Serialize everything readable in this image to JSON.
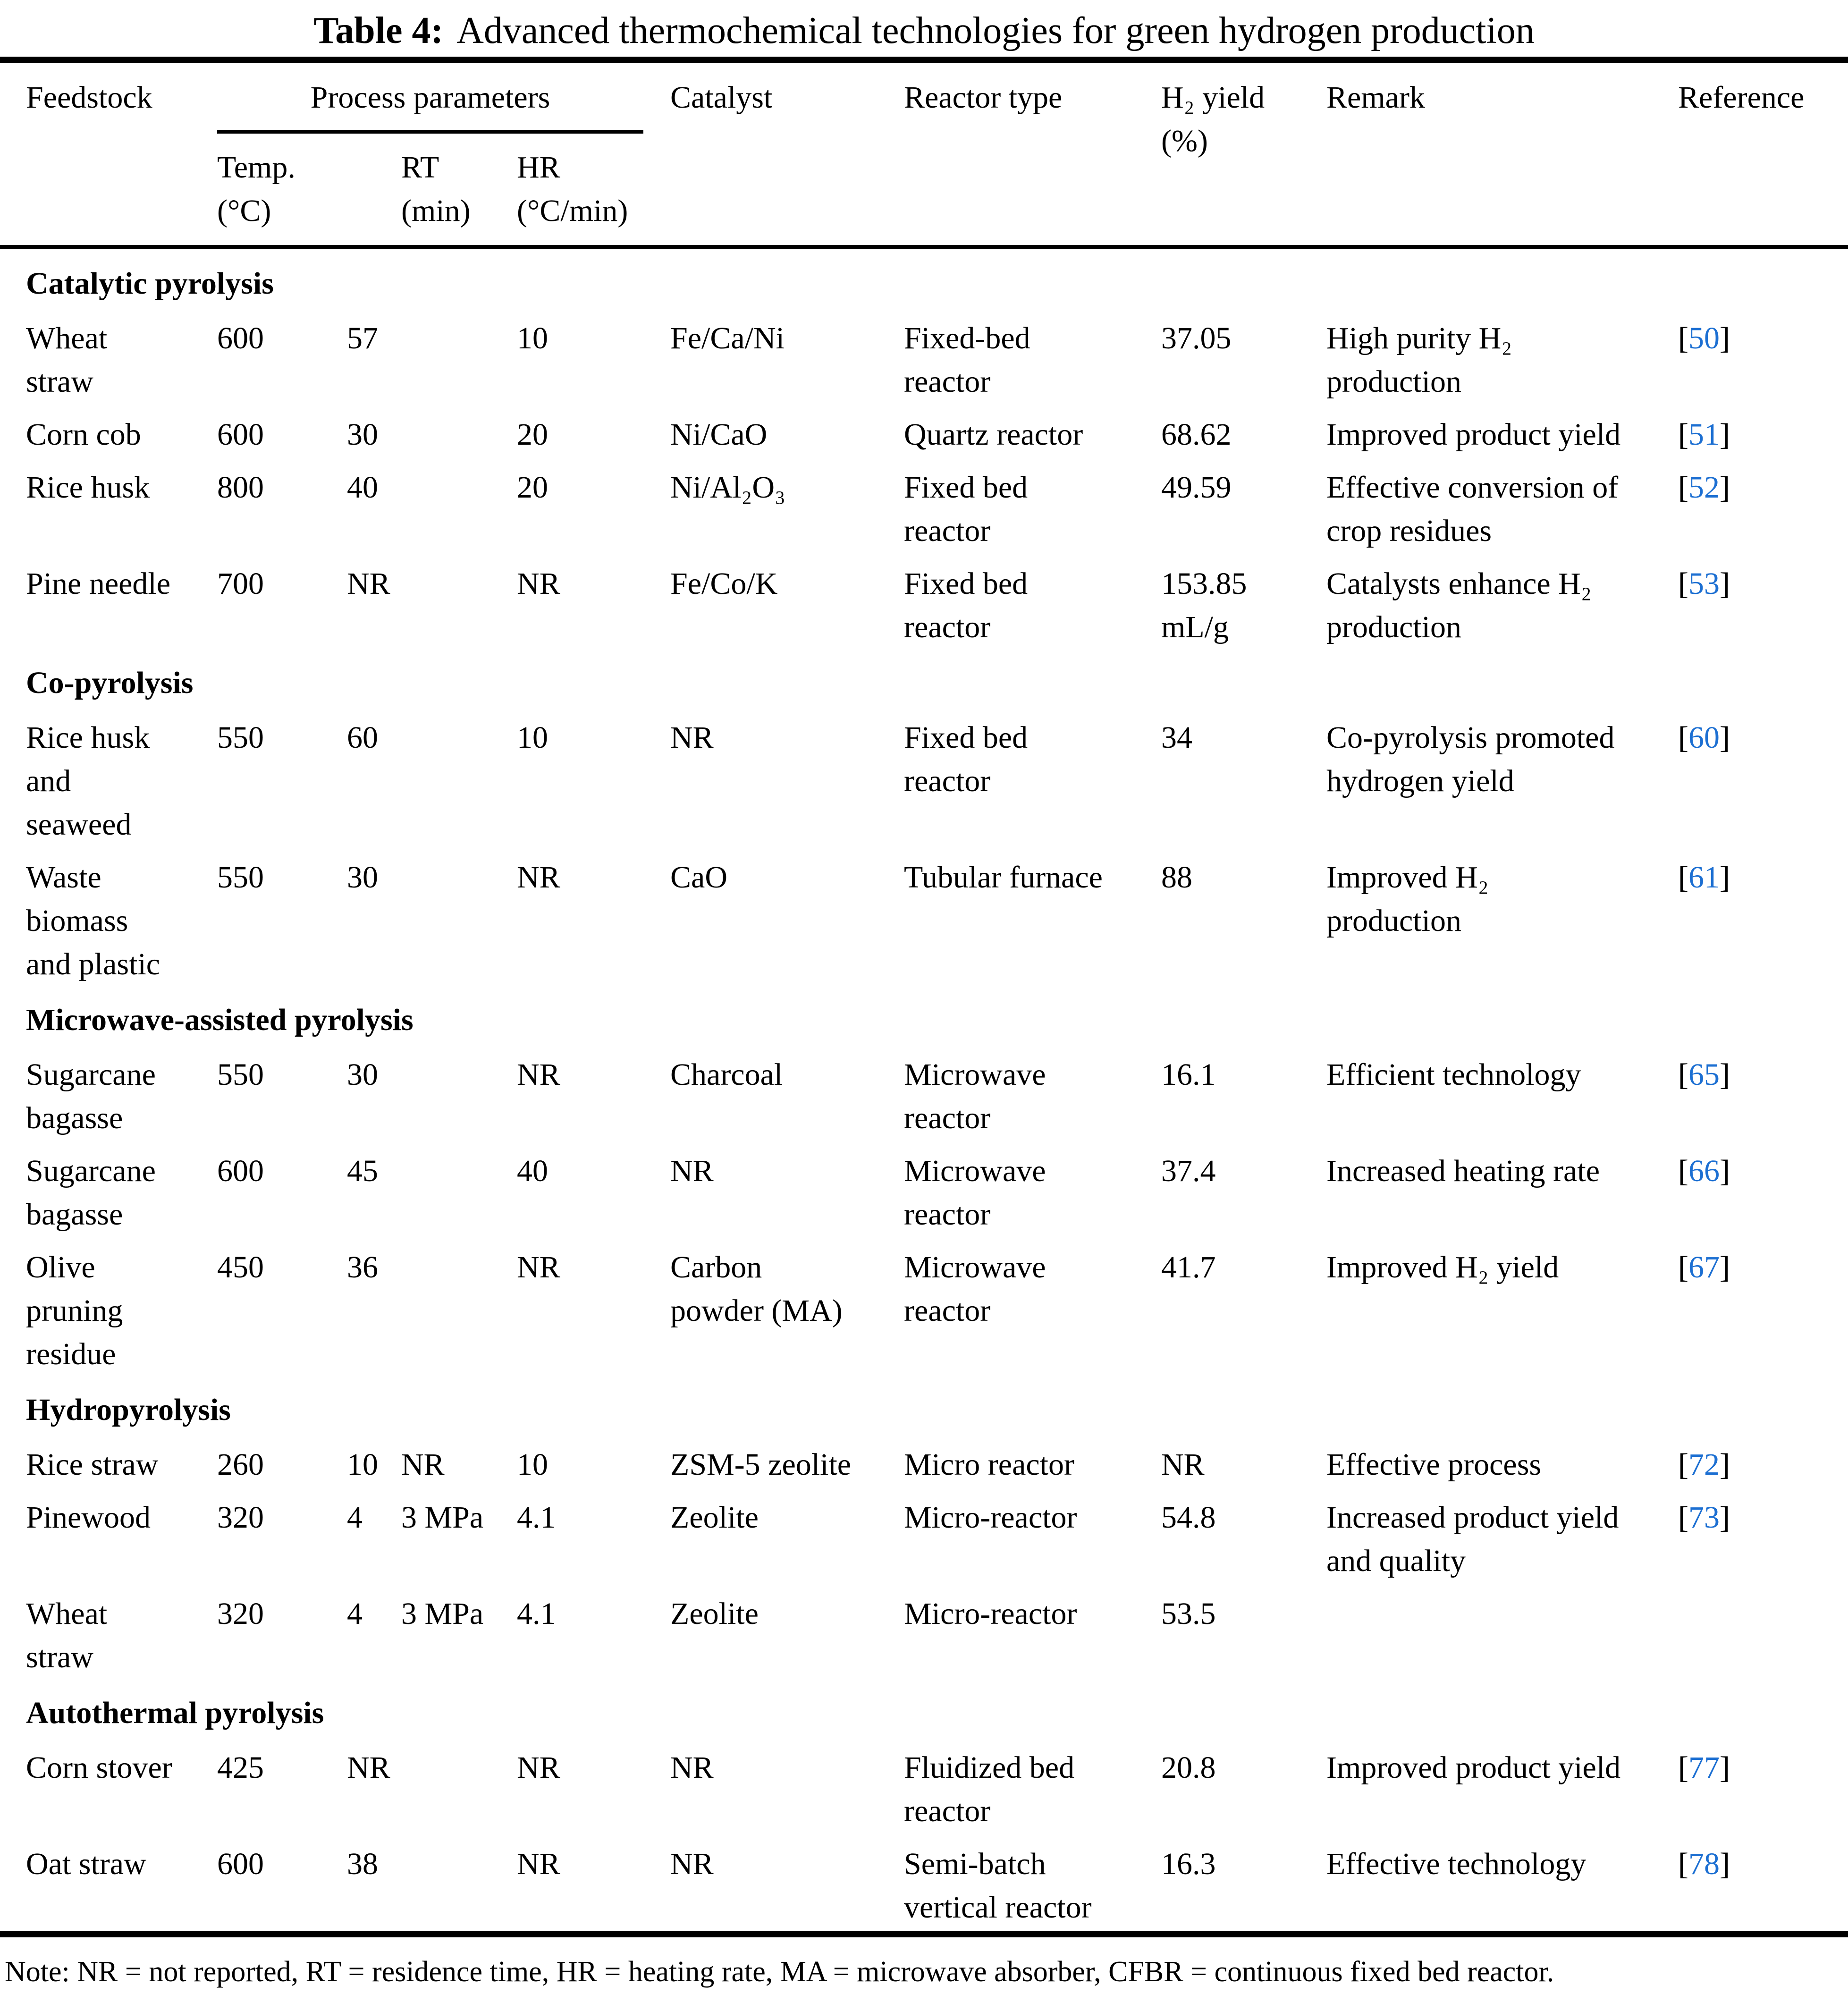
{
  "title": {
    "label": "Table 4:",
    "text": "Advanced thermochemical technologies for green hydrogen production"
  },
  "colors": {
    "link_blue": "#1c6fd2",
    "text": "#000000",
    "background": "#ffffff"
  },
  "header": {
    "feedstock": "Feedstock",
    "process_parameters": "Process parameters",
    "temp": "Temp.\n(°C)",
    "rt": "RT\n(min)",
    "hr": "HR\n(°C/min)",
    "catalyst": "Catalyst",
    "reactor": "Reactor type",
    "yield": "H₂ yield\n(%)",
    "remark": "Remark",
    "reference": "Reference"
  },
  "ref_brackets": {
    "open": "[",
    "close": "]"
  },
  "table": {
    "rows": [
      {
        "type": "section",
        "label": "Catalytic pyrolysis"
      },
      {
        "type": "data",
        "feedstock": "Wheat\nstraw",
        "temp": "600",
        "rt": "57",
        "pressure": "",
        "hr": "10",
        "catalyst": "Fe/Ca/Ni",
        "reactor": "Fixed-bed\nreactor",
        "yield": "37.05",
        "remark": "High purity H₂\nproduction",
        "ref": "50"
      },
      {
        "type": "data",
        "feedstock": "Corn cob",
        "temp": "600",
        "rt": "30",
        "pressure": "",
        "hr": "20",
        "catalyst": "Ni/CaO",
        "reactor": "Quartz reactor",
        "yield": "68.62",
        "remark": "Improved product yield",
        "ref": "51"
      },
      {
        "type": "data",
        "feedstock": "Rice husk",
        "temp": "800",
        "rt": "40",
        "pressure": "",
        "hr": "20",
        "catalyst": "Ni/Al₂O₃",
        "reactor": "Fixed bed\nreactor",
        "yield": "49.59",
        "remark": "Effective conversion of\ncrop residues",
        "ref": "52"
      },
      {
        "type": "data",
        "feedstock": "Pine needle",
        "temp": "700",
        "rt": "NR",
        "pressure": "",
        "hr": "NR",
        "catalyst": "Fe/Co/K",
        "reactor": "Fixed bed\nreactor",
        "yield": "153.85\nmL/g",
        "remark": "Catalysts enhance H₂\nproduction",
        "ref": "53"
      },
      {
        "type": "section",
        "label": "Co-pyrolysis"
      },
      {
        "type": "data",
        "feedstock": "Rice husk\nand\nseaweed",
        "temp": "550",
        "rt": "60",
        "pressure": "",
        "hr": "10",
        "catalyst": "NR",
        "reactor": "Fixed bed\nreactor",
        "yield": "34",
        "remark": "Co-pyrolysis promoted\nhydrogen yield",
        "ref": "60"
      },
      {
        "type": "data",
        "feedstock": "Waste\nbiomass\nand plastic",
        "temp": "550",
        "rt": "30",
        "pressure": "",
        "hr": "NR",
        "catalyst": "CaO",
        "reactor": "Tubular furnace",
        "yield": "88",
        "remark": "Improved H₂\nproduction",
        "ref": "61"
      },
      {
        "type": "section",
        "label": "Microwave-assisted pyrolysis"
      },
      {
        "type": "data",
        "feedstock": "Sugarcane\nbagasse",
        "temp": "550",
        "rt": "30",
        "pressure": "",
        "hr": "NR",
        "catalyst": "Charcoal",
        "reactor": "Microwave\nreactor",
        "yield": "16.1",
        "remark": "Efficient technology",
        "ref": "65"
      },
      {
        "type": "data",
        "feedstock": "Sugarcane\nbagasse",
        "temp": "600",
        "rt": "45",
        "pressure": "",
        "hr": "40",
        "catalyst": "NR",
        "reactor": "Microwave\nreactor",
        "yield": "37.4",
        "remark": "Increased heating rate",
        "ref": "66"
      },
      {
        "type": "data",
        "feedstock": "Olive\npruning\nresidue",
        "temp": "450",
        "rt": "36",
        "pressure": "",
        "hr": "NR",
        "catalyst": "Carbon\npowder (MA)",
        "reactor": "Microwave\nreactor",
        "yield": "41.7",
        "remark": "Improved H₂ yield",
        "ref": "67"
      },
      {
        "type": "section",
        "label": "Hydropyrolysis"
      },
      {
        "type": "data",
        "feedstock": "Rice straw",
        "temp": "260",
        "rt": "10",
        "pressure": "NR",
        "hr": "10",
        "catalyst": "ZSM-5 zeolite",
        "reactor": "Micro reactor",
        "yield": "NR",
        "remark": "Effective process",
        "ref": "72"
      },
      {
        "type": "data",
        "feedstock": "Pinewood",
        "temp": "320",
        "rt": "4",
        "pressure": "3 MPa",
        "hr": "4.1",
        "catalyst": "Zeolite",
        "reactor": "Micro-reactor",
        "yield": "54.8",
        "remark": "Increased product yield\nand quality",
        "ref": "73"
      },
      {
        "type": "data",
        "feedstock": "Wheat\nstraw",
        "temp": "320",
        "rt": "4",
        "pressure": "3 MPa",
        "hr": "4.1",
        "catalyst": "Zeolite",
        "reactor": "Micro-reactor",
        "yield": "53.5",
        "remark": "",
        "ref": ""
      },
      {
        "type": "section",
        "label": "Autothermal pyrolysis"
      },
      {
        "type": "data",
        "feedstock": "Corn stover",
        "temp": "425",
        "rt": "NR",
        "pressure": "",
        "hr": "NR",
        "catalyst": "NR",
        "reactor": "Fluidized bed\nreactor",
        "yield": "20.8",
        "remark": "Improved product yield",
        "ref": "77"
      },
      {
        "type": "data",
        "feedstock": "Oat straw",
        "temp": "600",
        "rt": "38",
        "pressure": "",
        "hr": "NR",
        "catalyst": "NR",
        "reactor": "Semi-batch\nvertical reactor",
        "yield": "16.3",
        "remark": "Effective technology",
        "ref": "78"
      }
    ]
  },
  "note": "Note: NR = not reported, RT = residence time, HR = heating rate, MA = microwave absorber, CFBR = continuous fixed bed reactor."
}
